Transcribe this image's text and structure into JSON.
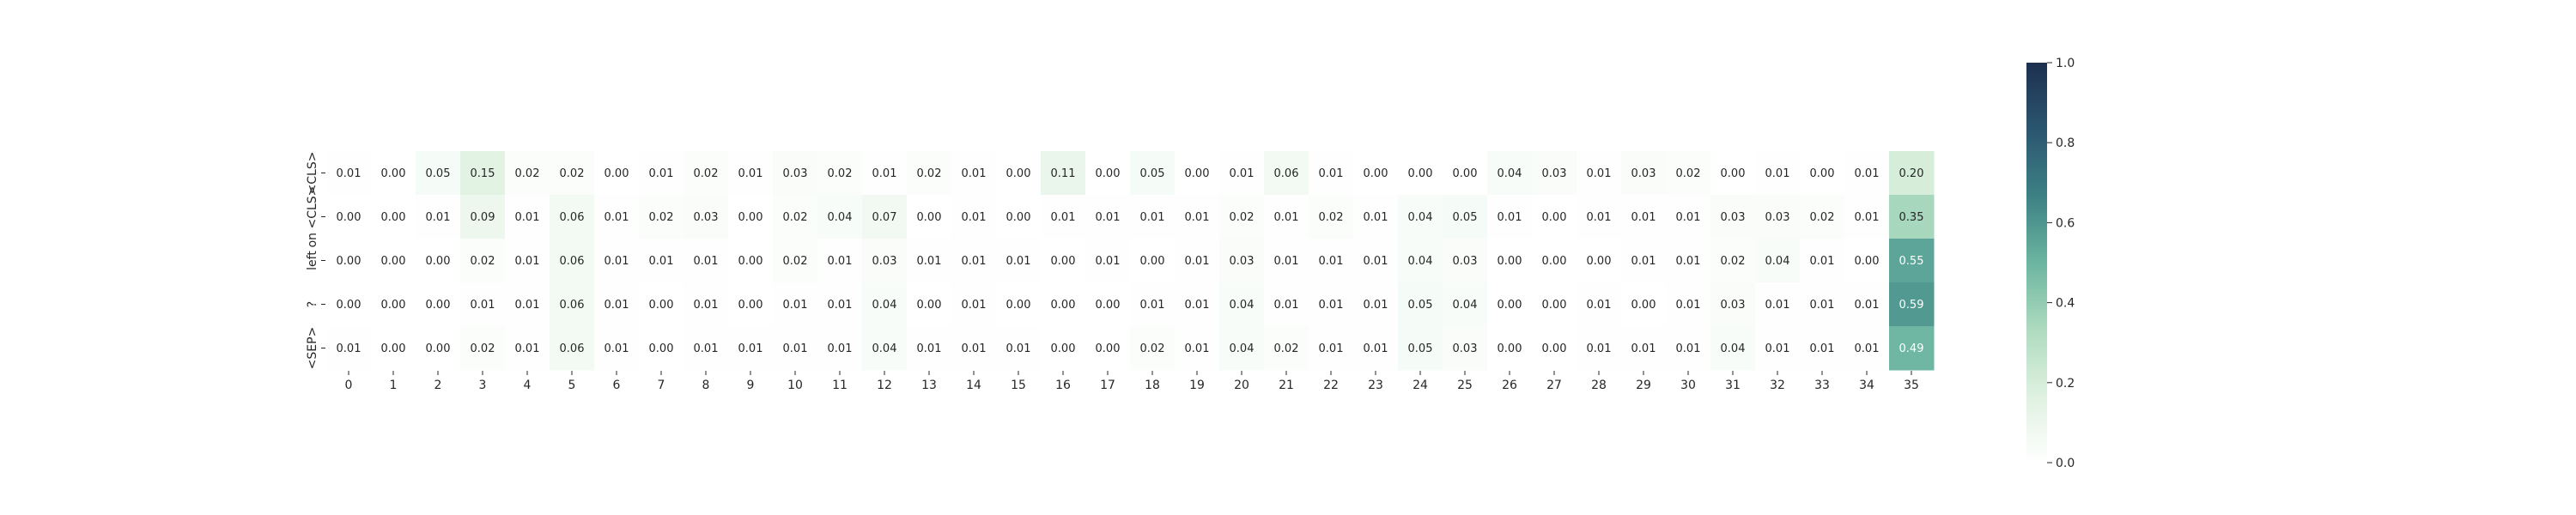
{
  "chart_data": {
    "type": "heatmap",
    "title": "",
    "xlabel": "",
    "ylabel": "",
    "rows": [
      "<CLS>",
      "on <CLS>",
      "left",
      "?",
      "<SEP>"
    ],
    "row_tick_labels": [
      "<CLS>",
      "on <CLS>",
      "left",
      "?",
      "<SEP>"
    ],
    "columns": [
      0,
      1,
      2,
      3,
      4,
      5,
      6,
      7,
      8,
      9,
      10,
      11,
      12,
      13,
      14,
      15,
      16,
      17,
      18,
      19,
      20,
      21,
      22,
      23,
      24,
      25,
      26,
      27,
      28,
      29,
      30,
      31,
      32,
      33,
      34,
      35
    ],
    "column_tick_labels": [
      "0",
      "1",
      "2",
      "3",
      "4",
      "5",
      "6",
      "7",
      "8",
      "9",
      "10",
      "11",
      "12",
      "13",
      "14",
      "15",
      "16",
      "17",
      "18",
      "19",
      "20",
      "21",
      "22",
      "23",
      "24",
      "25",
      "26",
      "27",
      "28",
      "29",
      "30",
      "31",
      "32",
      "33",
      "34",
      "35"
    ],
    "values": [
      [
        0.01,
        0.0,
        0.05,
        0.15,
        0.02,
        0.02,
        0.0,
        0.01,
        0.02,
        0.01,
        0.03,
        0.02,
        0.01,
        0.02,
        0.01,
        0.0,
        0.11,
        0.0,
        0.05,
        0.0,
        0.01,
        0.06,
        0.01,
        0.0,
        0.0,
        0.0,
        0.04,
        0.03,
        0.01,
        0.03,
        0.02,
        0.0,
        0.01,
        0.0,
        0.01,
        0.2
      ],
      [
        0.0,
        0.0,
        0.01,
        0.09,
        0.01,
        0.06,
        0.01,
        0.02,
        0.03,
        0.0,
        0.02,
        0.04,
        0.07,
        0.0,
        0.01,
        0.0,
        0.01,
        0.01,
        0.01,
        0.01,
        0.02,
        0.01,
        0.02,
        0.01,
        0.04,
        0.05,
        0.01,
        0.0,
        0.01,
        0.01,
        0.01,
        0.03,
        0.03,
        0.02,
        0.01,
        0.35
      ],
      [
        0.0,
        0.0,
        0.0,
        0.02,
        0.01,
        0.06,
        0.01,
        0.01,
        0.01,
        0.0,
        0.02,
        0.01,
        0.03,
        0.01,
        0.01,
        0.01,
        0.0,
        0.01,
        0.0,
        0.01,
        0.03,
        0.01,
        0.01,
        0.01,
        0.04,
        0.03,
        0.0,
        0.0,
        0.0,
        0.01,
        0.01,
        0.02,
        0.04,
        0.01,
        0.0,
        0.55
      ],
      [
        0.0,
        0.0,
        0.0,
        0.01,
        0.01,
        0.06,
        0.01,
        0.0,
        0.01,
        0.0,
        0.01,
        0.01,
        0.04,
        0.0,
        0.01,
        0.0,
        0.0,
        0.0,
        0.01,
        0.01,
        0.04,
        0.01,
        0.01,
        0.01,
        0.05,
        0.04,
        0.0,
        0.0,
        0.01,
        0.0,
        0.01,
        0.03,
        0.01,
        0.01,
        0.01,
        0.59
      ],
      [
        0.01,
        0.0,
        0.0,
        0.02,
        0.01,
        0.06,
        0.01,
        0.0,
        0.01,
        0.01,
        0.01,
        0.01,
        0.04,
        0.01,
        0.01,
        0.01,
        0.0,
        0.0,
        0.02,
        0.01,
        0.04,
        0.02,
        0.01,
        0.01,
        0.05,
        0.03,
        0.0,
        0.0,
        0.01,
        0.01,
        0.01,
        0.04,
        0.01,
        0.01,
        0.01,
        0.49
      ]
    ],
    "value_format": "0.00",
    "colorbar": {
      "range": [
        0.0,
        1.0
      ],
      "ticks": [
        "0.0",
        "0.2",
        "0.4",
        "0.6",
        "0.8",
        "1.0"
      ]
    },
    "colors": {
      "colormap_stops": [
        "#ffffff",
        "#dff1e0",
        "#aedbbf",
        "#6bb5a0",
        "#3d8184",
        "#2b5670",
        "#1d2f4f"
      ],
      "text_dark": "#262626",
      "text_light": "#ffffff"
    },
    "grid": false,
    "legend": "none"
  }
}
